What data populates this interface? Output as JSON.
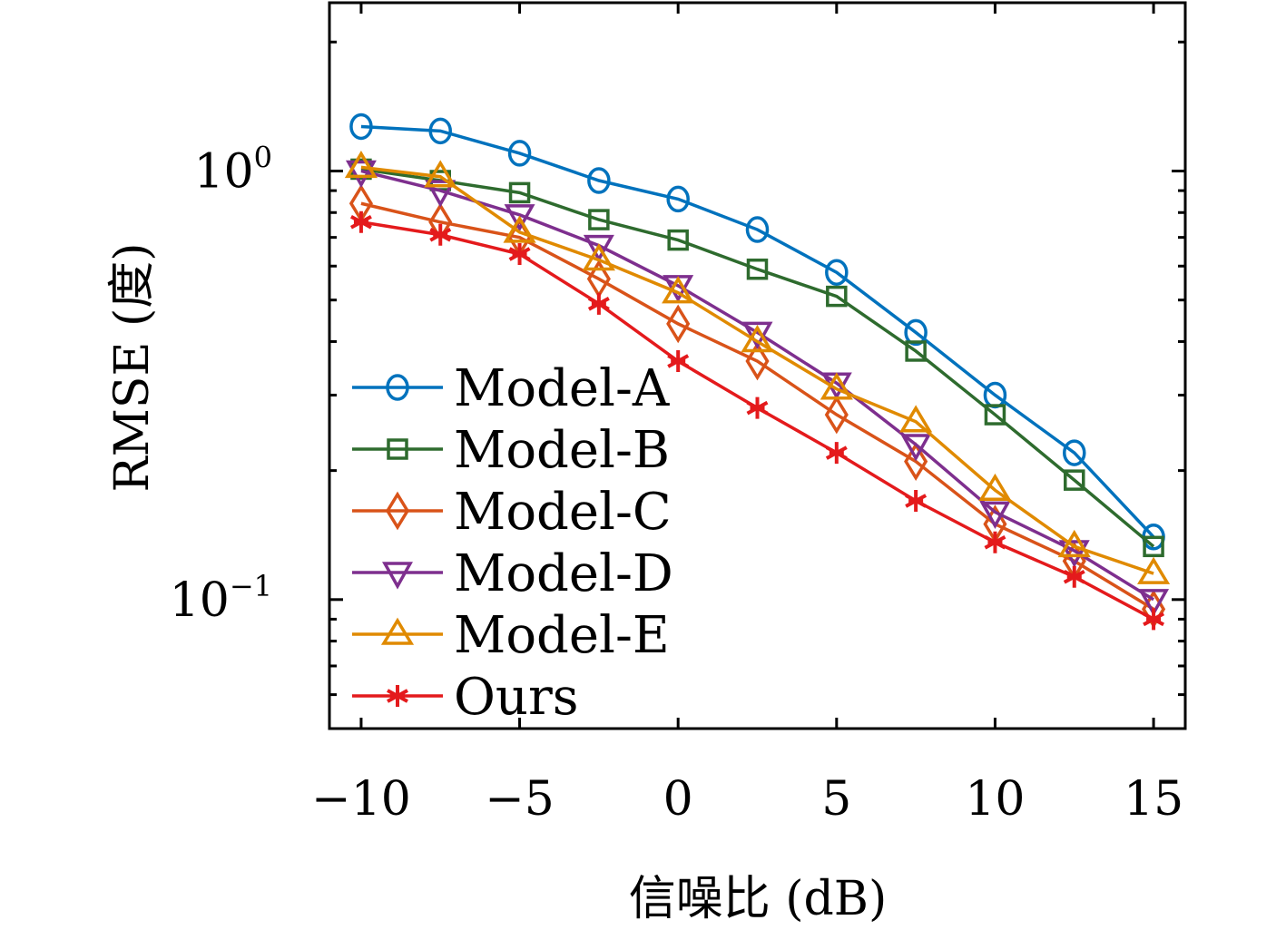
{
  "chart_data": {
    "type": "line",
    "title": "",
    "xlabel": "信噪比 (dB)",
    "ylabel": "RMSE (度)",
    "xlim": [
      -11,
      16
    ],
    "ylim": [
      0.05,
      2.47
    ],
    "yscale": "log",
    "grid": false,
    "legend_position": "bottom-left",
    "x": [
      -10,
      -7.5,
      -5,
      -2.5,
      0,
      2.5,
      5,
      7.5,
      10,
      12.5,
      15
    ],
    "xticks": [
      -10,
      -5,
      0,
      5,
      10,
      15
    ],
    "xtick_labels": [
      "−10",
      "−5",
      "0",
      "5",
      "10",
      "15"
    ],
    "yticks": [
      {
        "value": 1,
        "base": "10",
        "exp": "0"
      },
      {
        "value": 0.1,
        "base": "10",
        "exp": "−1"
      }
    ],
    "series": [
      {
        "name": "Model-A",
        "color": "#0072BD",
        "marker": "circle",
        "values": [
          1.27,
          1.24,
          1.1,
          0.95,
          0.86,
          0.73,
          0.58,
          0.42,
          0.3,
          0.22,
          0.14
        ]
      },
      {
        "name": "Model-B",
        "color": "#2E6B2E",
        "marker": "square",
        "values": [
          1.01,
          0.95,
          0.89,
          0.77,
          0.69,
          0.59,
          0.51,
          0.38,
          0.27,
          0.19,
          0.133
        ]
      },
      {
        "name": "Model-C",
        "color": "#D95319",
        "marker": "diamond",
        "values": [
          0.84,
          0.76,
          0.7,
          0.56,
          0.44,
          0.36,
          0.27,
          0.21,
          0.15,
          0.123,
          0.095
        ]
      },
      {
        "name": "Model-D",
        "color": "#7E2F8E",
        "marker": "triangle-down",
        "values": [
          1.0,
          0.9,
          0.79,
          0.67,
          0.54,
          0.42,
          0.32,
          0.23,
          0.16,
          0.13,
          0.1
        ]
      },
      {
        "name": "Model-E",
        "color": "#E08A00",
        "marker": "triangle-up",
        "values": [
          1.02,
          0.97,
          0.72,
          0.62,
          0.52,
          0.4,
          0.31,
          0.26,
          0.18,
          0.133,
          0.115
        ]
      },
      {
        "name": "Ours",
        "color": "#E41A1C",
        "marker": "asterisk",
        "values": [
          0.76,
          0.71,
          0.64,
          0.49,
          0.36,
          0.28,
          0.22,
          0.17,
          0.136,
          0.113,
          0.09
        ]
      }
    ]
  }
}
